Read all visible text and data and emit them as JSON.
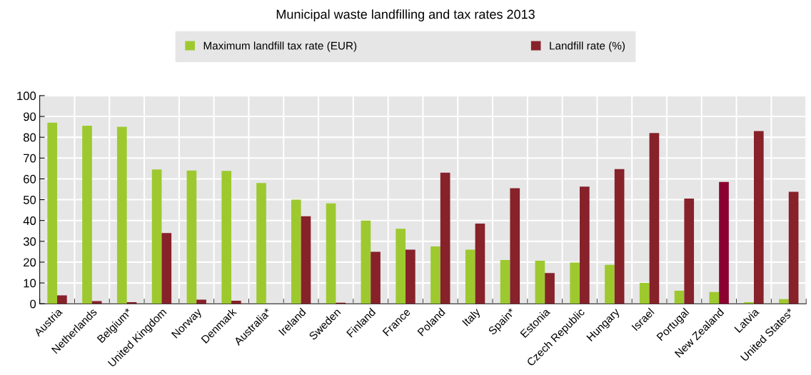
{
  "chart_data": {
    "type": "bar",
    "title": "Municipal waste landfilling and tax rates 2013",
    "categories": [
      "Austria",
      "Netherlands",
      "Belgium*",
      "United Kingdom",
      "Norway",
      "Denmark",
      "Australia*",
      "Ireland",
      "Sweden",
      "Finland",
      "France",
      "Poland",
      "Italy",
      "Spain*",
      "Estonia",
      "Czech Republic",
      "Hungary",
      "Israel",
      "Portugal",
      "New Zealand",
      "Latvia",
      "United States*"
    ],
    "series": [
      {
        "name": "Maximum landfill tax rate (EUR)",
        "color": "#9dc92f",
        "values": [
          87,
          85.5,
          85,
          64.5,
          64,
          63.8,
          58,
          50,
          48.2,
          40,
          36,
          27.5,
          26,
          21,
          20.7,
          19.8,
          18.7,
          10,
          6.3,
          5.7,
          0.8,
          2.2
        ]
      },
      {
        "name": "Landfill rate (%)",
        "color": "#87212a",
        "colors": [
          "#87212a",
          "#87212a",
          "#87212a",
          "#87212a",
          "#87212a",
          "#87212a",
          "#87212a",
          "#87212a",
          "#87212a",
          "#87212a",
          "#87212a",
          "#87212a",
          "#87212a",
          "#87212a",
          "#87212a",
          "#87212a",
          "#87212a",
          "#87212a",
          "#87212a",
          "#8b0030",
          "#87212a",
          "#87212a"
        ],
        "values": [
          4,
          1.3,
          0.8,
          34,
          2,
          1.5,
          null,
          42,
          0.5,
          25,
          26,
          63,
          38.5,
          55.5,
          14.8,
          56.3,
          64.7,
          82,
          50.5,
          58.5,
          83,
          53.8
        ]
      }
    ],
    "ylim": [
      0,
      100
    ],
    "yticks": [
      0,
      10,
      20,
      30,
      40,
      50,
      60,
      70,
      80,
      90,
      100
    ],
    "grid": true,
    "legend": "top"
  }
}
